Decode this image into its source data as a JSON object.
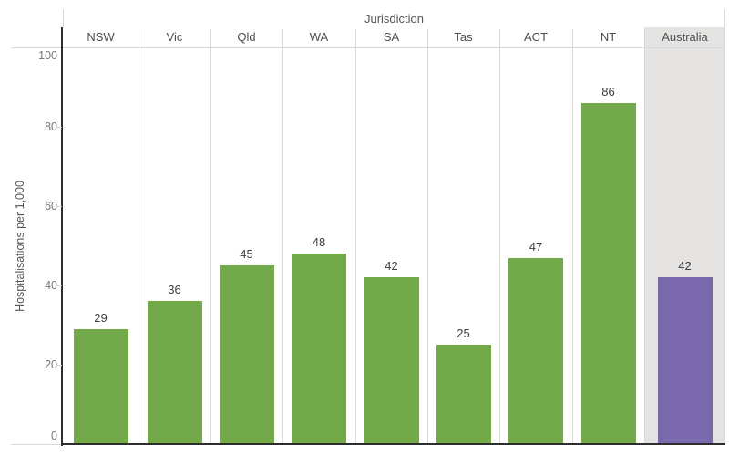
{
  "chart_data": {
    "type": "bar",
    "categories": [
      "NSW",
      "Vic",
      "Qld",
      "WA",
      "SA",
      "Tas",
      "ACT",
      "NT",
      "Australia"
    ],
    "values": [
      29,
      36,
      45,
      48,
      42,
      25,
      47,
      86,
      42
    ],
    "xlabel": "Jurisdiction",
    "ylabel": "Hospitalisations per 1,000",
    "yticks": [
      0,
      20,
      40,
      60,
      80,
      100
    ],
    "ylim": [
      0,
      100
    ],
    "grid": false,
    "value_labels_shown": true,
    "bar_color": "#73aa49",
    "highlight": {
      "category": "Australia",
      "bar_color": "#7968ab",
      "band_color": "#e4e3e2"
    }
  },
  "colors": {
    "axis_line": "#2e2e2e",
    "ruler_line": "#d9d9d9",
    "tick_text": "#787878",
    "header_text": "#4f4f4f",
    "value_text": "#3e3e3e"
  }
}
